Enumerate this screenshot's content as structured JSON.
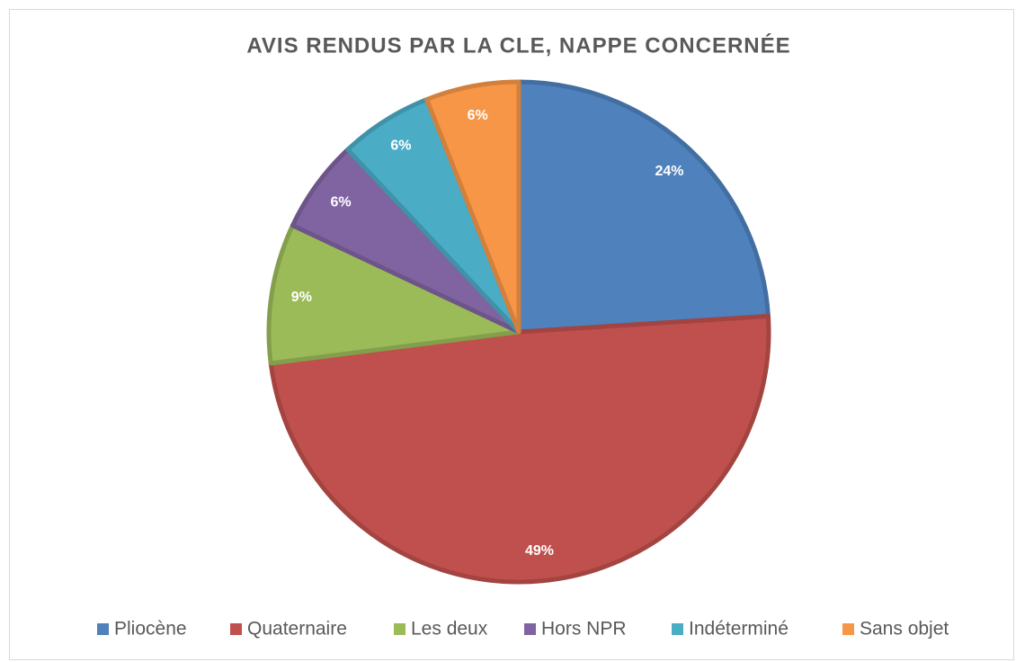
{
  "chart_data": {
    "type": "pie",
    "title": "AVIS RENDUS PAR LA CLE, NAPPE CONCERNÉE",
    "categories": [
      "Pliocène",
      "Quaternaire",
      "Les deux",
      "Hors NPR",
      "Indéterminé",
      "Sans objet"
    ],
    "values": [
      24,
      49,
      9,
      6,
      6,
      6
    ],
    "value_labels": [
      "24%",
      "49%",
      "9%",
      "6%",
      "6%",
      "6%"
    ],
    "colors": [
      "#4f81bd",
      "#c0504d",
      "#9bbb59",
      "#8064a2",
      "#4bacc6",
      "#f79646"
    ],
    "legend": "bottom"
  }
}
